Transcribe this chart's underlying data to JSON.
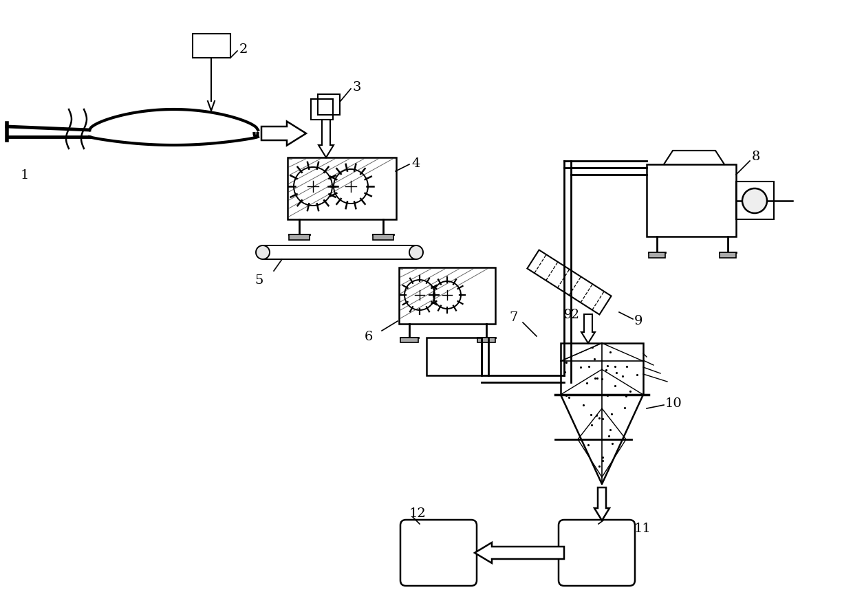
{
  "bg": "#ffffff",
  "lc": "#000000",
  "fw": 12.4,
  "fh": 8.78,
  "dpi": 100
}
